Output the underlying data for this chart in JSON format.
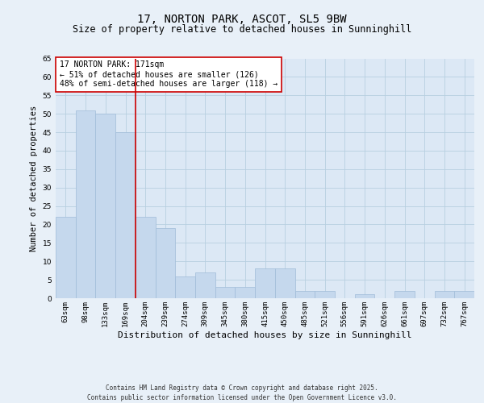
{
  "title": "17, NORTON PARK, ASCOT, SL5 9BW",
  "subtitle": "Size of property relative to detached houses in Sunninghill",
  "xlabel": "Distribution of detached houses by size in Sunninghill",
  "ylabel": "Number of detached properties",
  "categories": [
    "63sqm",
    "98sqm",
    "133sqm",
    "169sqm",
    "204sqm",
    "239sqm",
    "274sqm",
    "309sqm",
    "345sqm",
    "380sqm",
    "415sqm",
    "450sqm",
    "485sqm",
    "521sqm",
    "556sqm",
    "591sqm",
    "626sqm",
    "661sqm",
    "697sqm",
    "732sqm",
    "767sqm"
  ],
  "values": [
    22,
    51,
    50,
    45,
    22,
    19,
    6,
    7,
    3,
    3,
    8,
    8,
    2,
    2,
    0,
    1,
    0,
    2,
    0,
    2,
    2
  ],
  "bar_color": "#c5d8ed",
  "bar_edgecolor": "#a0bcd8",
  "grid_color": "#b8cfe0",
  "background_color": "#e8f0f8",
  "plot_bg_color": "#dce8f5",
  "red_line_index": 3,
  "red_line_color": "#cc0000",
  "annotation_text": "17 NORTON PARK: 171sqm\n← 51% of detached houses are smaller (126)\n48% of semi-detached houses are larger (118) →",
  "annotation_box_facecolor": "#ffffff",
  "annotation_box_edgecolor": "#cc0000",
  "ylim": [
    0,
    65
  ],
  "yticks": [
    0,
    5,
    10,
    15,
    20,
    25,
    30,
    35,
    40,
    45,
    50,
    55,
    60,
    65
  ],
  "footer": "Contains HM Land Registry data © Crown copyright and database right 2025.\nContains public sector information licensed under the Open Government Licence v3.0.",
  "title_fontsize": 10,
  "subtitle_fontsize": 8.5,
  "xlabel_fontsize": 8,
  "ylabel_fontsize": 7.5,
  "tick_fontsize": 6.5,
  "annotation_fontsize": 7,
  "footer_fontsize": 5.5
}
